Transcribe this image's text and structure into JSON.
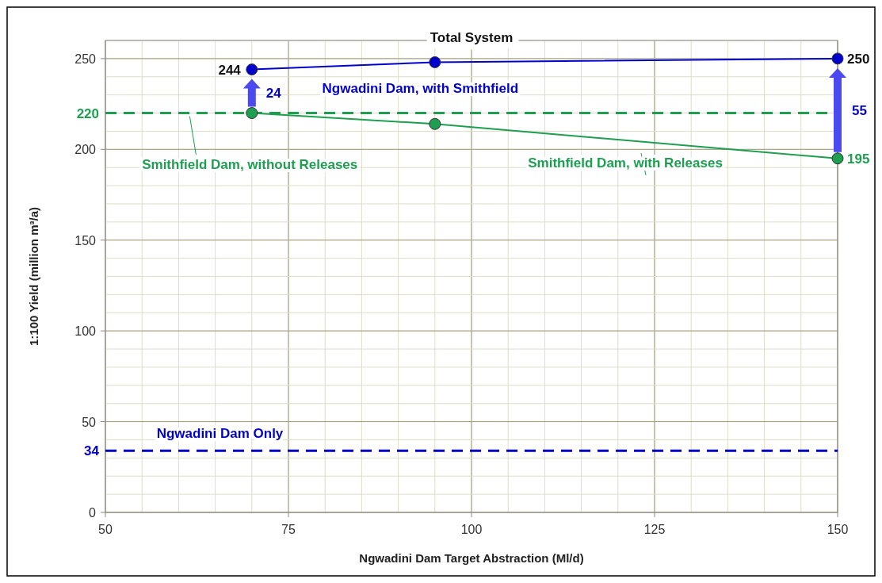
{
  "chart_data": {
    "type": "line",
    "title": "Total System",
    "xlabel": "Ngwadini Dam Target Abstraction (Ml/d)",
    "ylabel": "1:100 Yield (million m³/a)",
    "x": [
      70,
      95,
      150
    ],
    "series": [
      {
        "name": "Ngwadini Dam, with Smithfield",
        "color": "#0000cc",
        "values": [
          244,
          248,
          250
        ],
        "value_labels": [
          "244",
          null,
          "250"
        ]
      },
      {
        "name": "Smithfield Dam, with Releases",
        "color": "#1e9e50",
        "values": [
          220,
          214,
          195
        ],
        "value_labels": [
          null,
          null,
          "195"
        ]
      }
    ],
    "ref_lines": [
      {
        "axis": "y",
        "value": 220,
        "label": "Smithfield Dam, without Releases",
        "color": "#1e9e50",
        "line_style": "dashed"
      },
      {
        "axis": "y",
        "value": 34,
        "label": "Ngwadini Dam Only",
        "color": "#0000cc",
        "line_style": "dashed"
      }
    ],
    "annotations": [
      "24",
      "55"
    ],
    "xlim": [
      50,
      150
    ],
    "xticks": [
      50,
      75,
      100,
      125,
      150
    ],
    "ylim": [
      0,
      260
    ],
    "yticks": [
      0,
      {
        "value": 34,
        "label": "34"
      },
      50,
      100,
      150,
      200,
      {
        "value": 220,
        "label": "220"
      },
      250
    ],
    "grid": true,
    "marker": "circle",
    "line_style": "solid"
  }
}
